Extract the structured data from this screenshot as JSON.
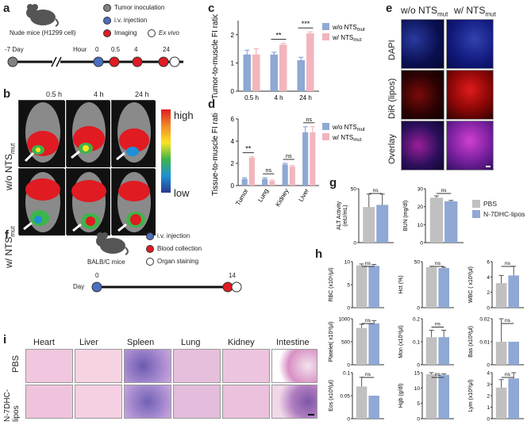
{
  "panels": {
    "a": "a",
    "b": "b",
    "c": "c",
    "d": "d",
    "e": "e",
    "f": "f",
    "g": "g",
    "h": "h",
    "i": "i"
  },
  "panel_a": {
    "mouse_label": "Nude mice (H1299 cell)",
    "legend": [
      "Tumor inoculation",
      "i.v. injection",
      "Imaging",
      "Ex vivo"
    ],
    "day_label": "-7 Day",
    "hour_label": "Hour",
    "ticks": [
      "0",
      "0.5",
      "4",
      "24"
    ],
    "colors": {
      "gray": "#808080",
      "blue": "#4a6fc0",
      "red": "#e01b22",
      "white": "#ffffff"
    }
  },
  "panel_b": {
    "times": [
      "0.5 h",
      "4 h",
      "24 h"
    ],
    "row_labels": [
      "w/o NTS",
      "w/ NTS"
    ],
    "row_sub": "mut",
    "scale_high": "high",
    "scale_low": "low"
  },
  "panel_e": {
    "col_labels": [
      "w/o NTS",
      "w/ NTS"
    ],
    "col_sub": "mut",
    "row_labels": [
      "DAPI",
      "DiR (lipos)",
      "Overlay"
    ]
  },
  "panel_f": {
    "mouse_label": "BALB/C mice",
    "legend": [
      "i.v. injection",
      "Blood collection",
      "Organ staining"
    ],
    "day_label": "Day",
    "ticks": [
      "0",
      "14"
    ]
  },
  "panel_i": {
    "organs": [
      "Heart",
      "Liver",
      "Spleen",
      "Lung",
      "Kidney",
      "Intestine"
    ],
    "row_labels": [
      "PBS",
      "N-7DHC-\nlipos"
    ]
  },
  "chart_data": [
    {
      "id": "c",
      "type": "bar",
      "ylabel": "Tumor-to-muscle FI ratio",
      "categories": [
        "0.5 h",
        "4 h",
        "24 h"
      ],
      "ylim": [
        0,
        2.5
      ],
      "yticks": [
        0,
        1,
        2
      ],
      "series": [
        {
          "name": "w/o NTS",
          "name_sub": "mut",
          "color": "#8fa8d4",
          "values": [
            1.3,
            1.3,
            1.1
          ],
          "err": [
            0.15,
            0.08,
            0.1
          ]
        },
        {
          "name": "w/ NTS",
          "name_sub": "mut",
          "color": "#f2b5bd",
          "values": [
            1.3,
            1.65,
            2.05
          ],
          "err": [
            0.2,
            0.05,
            0.05
          ]
        }
      ],
      "sig": [
        "",
        "**",
        "***"
      ]
    },
    {
      "id": "d",
      "type": "bar",
      "ylabel": "Tissue-to-muscle FI ratio",
      "categories": [
        "Tumor",
        "Lung",
        "Kidney",
        "Liver"
      ],
      "ylim": [
        0,
        6
      ],
      "yticks": [
        0,
        2,
        4,
        6
      ],
      "series": [
        {
          "name": "w/o NTS",
          "name_sub": "mut",
          "color": "#8fa8d4",
          "values": [
            0.6,
            0.6,
            1.9,
            4.8
          ],
          "err": [
            0.1,
            0.1,
            0.1,
            0.5
          ]
        },
        {
          "name": "w/ NTS",
          "name_sub": "mut",
          "color": "#f2b5bd",
          "values": [
            2.5,
            0.4,
            1.7,
            4.8
          ],
          "err": [
            0.1,
            0.1,
            0.1,
            0.5
          ]
        }
      ],
      "sig": [
        "**",
        "ns",
        "ns",
        "ns"
      ]
    },
    {
      "id": "g1",
      "type": "bar",
      "ylabel": "ALT Activity\n(mU/mL)",
      "categories": [
        "PBS",
        "N-7DHC-lipos"
      ],
      "ylim": [
        0,
        50
      ],
      "yticks": [
        0,
        50
      ],
      "values": [
        33,
        35
      ],
      "err": [
        12,
        10
      ],
      "colors": [
        "#c0c0c0",
        "#8fa8d4"
      ],
      "sig": "ns"
    },
    {
      "id": "g2",
      "type": "bar",
      "ylabel": "BUN (mg/dl)",
      "categories": [
        "PBS",
        "N-7DHC-lipos"
      ],
      "ylim": [
        0,
        30
      ],
      "yticks": [
        0,
        10,
        20,
        30
      ],
      "values": [
        25,
        23
      ],
      "err": [
        1,
        0.5
      ],
      "colors": [
        "#c0c0c0",
        "#8fa8d4"
      ],
      "sig": "ns",
      "legend": [
        "PBS",
        "N-7DHC-lipos"
      ]
    },
    {
      "id": "h1",
      "type": "bar",
      "ylabel": "RBC (x10⁶/μl)",
      "ylim": [
        0,
        10
      ],
      "yticks": [
        0,
        5,
        10
      ],
      "values": [
        9.2,
        9.1
      ],
      "err": [
        0.3,
        0.3
      ],
      "colors": [
        "#c0c0c0",
        "#8fa8d4"
      ],
      "sig": "ns"
    },
    {
      "id": "h2",
      "type": "bar",
      "ylabel": "Hct (%)",
      "ylim": [
        0,
        50
      ],
      "yticks": [
        0,
        50
      ],
      "values": [
        44,
        43
      ],
      "err": [
        1,
        1
      ],
      "colors": [
        "#c0c0c0",
        "#8fa8d4"
      ],
      "sig": "ns"
    },
    {
      "id": "h3",
      "type": "bar",
      "ylabel": "WBC ( x10³/μl)",
      "ylim": [
        0,
        6
      ],
      "yticks": [
        0,
        2,
        4,
        6
      ],
      "values": [
        3.2,
        4.2
      ],
      "err": [
        1.0,
        1.2
      ],
      "colors": [
        "#c0c0c0",
        "#8fa8d4"
      ],
      "sig": "ns"
    },
    {
      "id": "h4",
      "type": "bar",
      "ylabel": "Platelet( x10³/μl)",
      "ylim": [
        0,
        1000
      ],
      "yticks": [
        0,
        500,
        1000
      ],
      "values": [
        800,
        900
      ],
      "err": [
        80,
        60
      ],
      "colors": [
        "#c0c0c0",
        "#8fa8d4"
      ],
      "sig": "ns"
    },
    {
      "id": "h5",
      "type": "bar",
      "ylabel": "Mon (x10³/μl)",
      "ylim": [
        0,
        0.2
      ],
      "yticks": [
        0.0,
        0.1,
        0.2
      ],
      "values": [
        0.12,
        0.12
      ],
      "err": [
        0.03,
        0.03
      ],
      "colors": [
        "#c0c0c0",
        "#8fa8d4"
      ],
      "sig": "ns"
    },
    {
      "id": "h6",
      "type": "bar",
      "ylabel": "Bas (x10³/μl)",
      "ylim": [
        0,
        0.02
      ],
      "yticks": [
        0.0,
        0.01,
        0.02
      ],
      "values": [
        0.01,
        0.01
      ],
      "err": [
        0.01,
        0.0
      ],
      "colors": [
        "#c0c0c0",
        "#8fa8d4"
      ],
      "sig": "ns"
    },
    {
      "id": "h7",
      "type": "bar",
      "ylabel": "Eos (x10³/μl)",
      "ylim": [
        0,
        0.1
      ],
      "yticks": [
        0.0,
        0.05,
        0.1
      ],
      "values": [
        0.07,
        0.05
      ],
      "err": [
        0.02,
        0.0
      ],
      "colors": [
        "#c0c0c0",
        "#8fa8d4"
      ],
      "sig": "ns"
    },
    {
      "id": "h8",
      "type": "bar",
      "ylabel": "Hgb (g/dl)",
      "ylim": [
        0,
        15
      ],
      "yticks": [
        0,
        5,
        10,
        15
      ],
      "values": [
        14.5,
        14.3
      ],
      "err": [
        0.5,
        0.3
      ],
      "colors": [
        "#c0c0c0",
        "#8fa8d4"
      ],
      "sig": "ns"
    },
    {
      "id": "h9",
      "type": "bar",
      "ylabel": "Lym (x10³/μl)",
      "ylim": [
        0,
        4
      ],
      "yticks": [
        0,
        1,
        2,
        3,
        4
      ],
      "values": [
        2.7,
        3.5
      ],
      "err": [
        0.7,
        0.5
      ],
      "colors": [
        "#c0c0c0",
        "#8fa8d4"
      ],
      "sig": "ns"
    }
  ]
}
